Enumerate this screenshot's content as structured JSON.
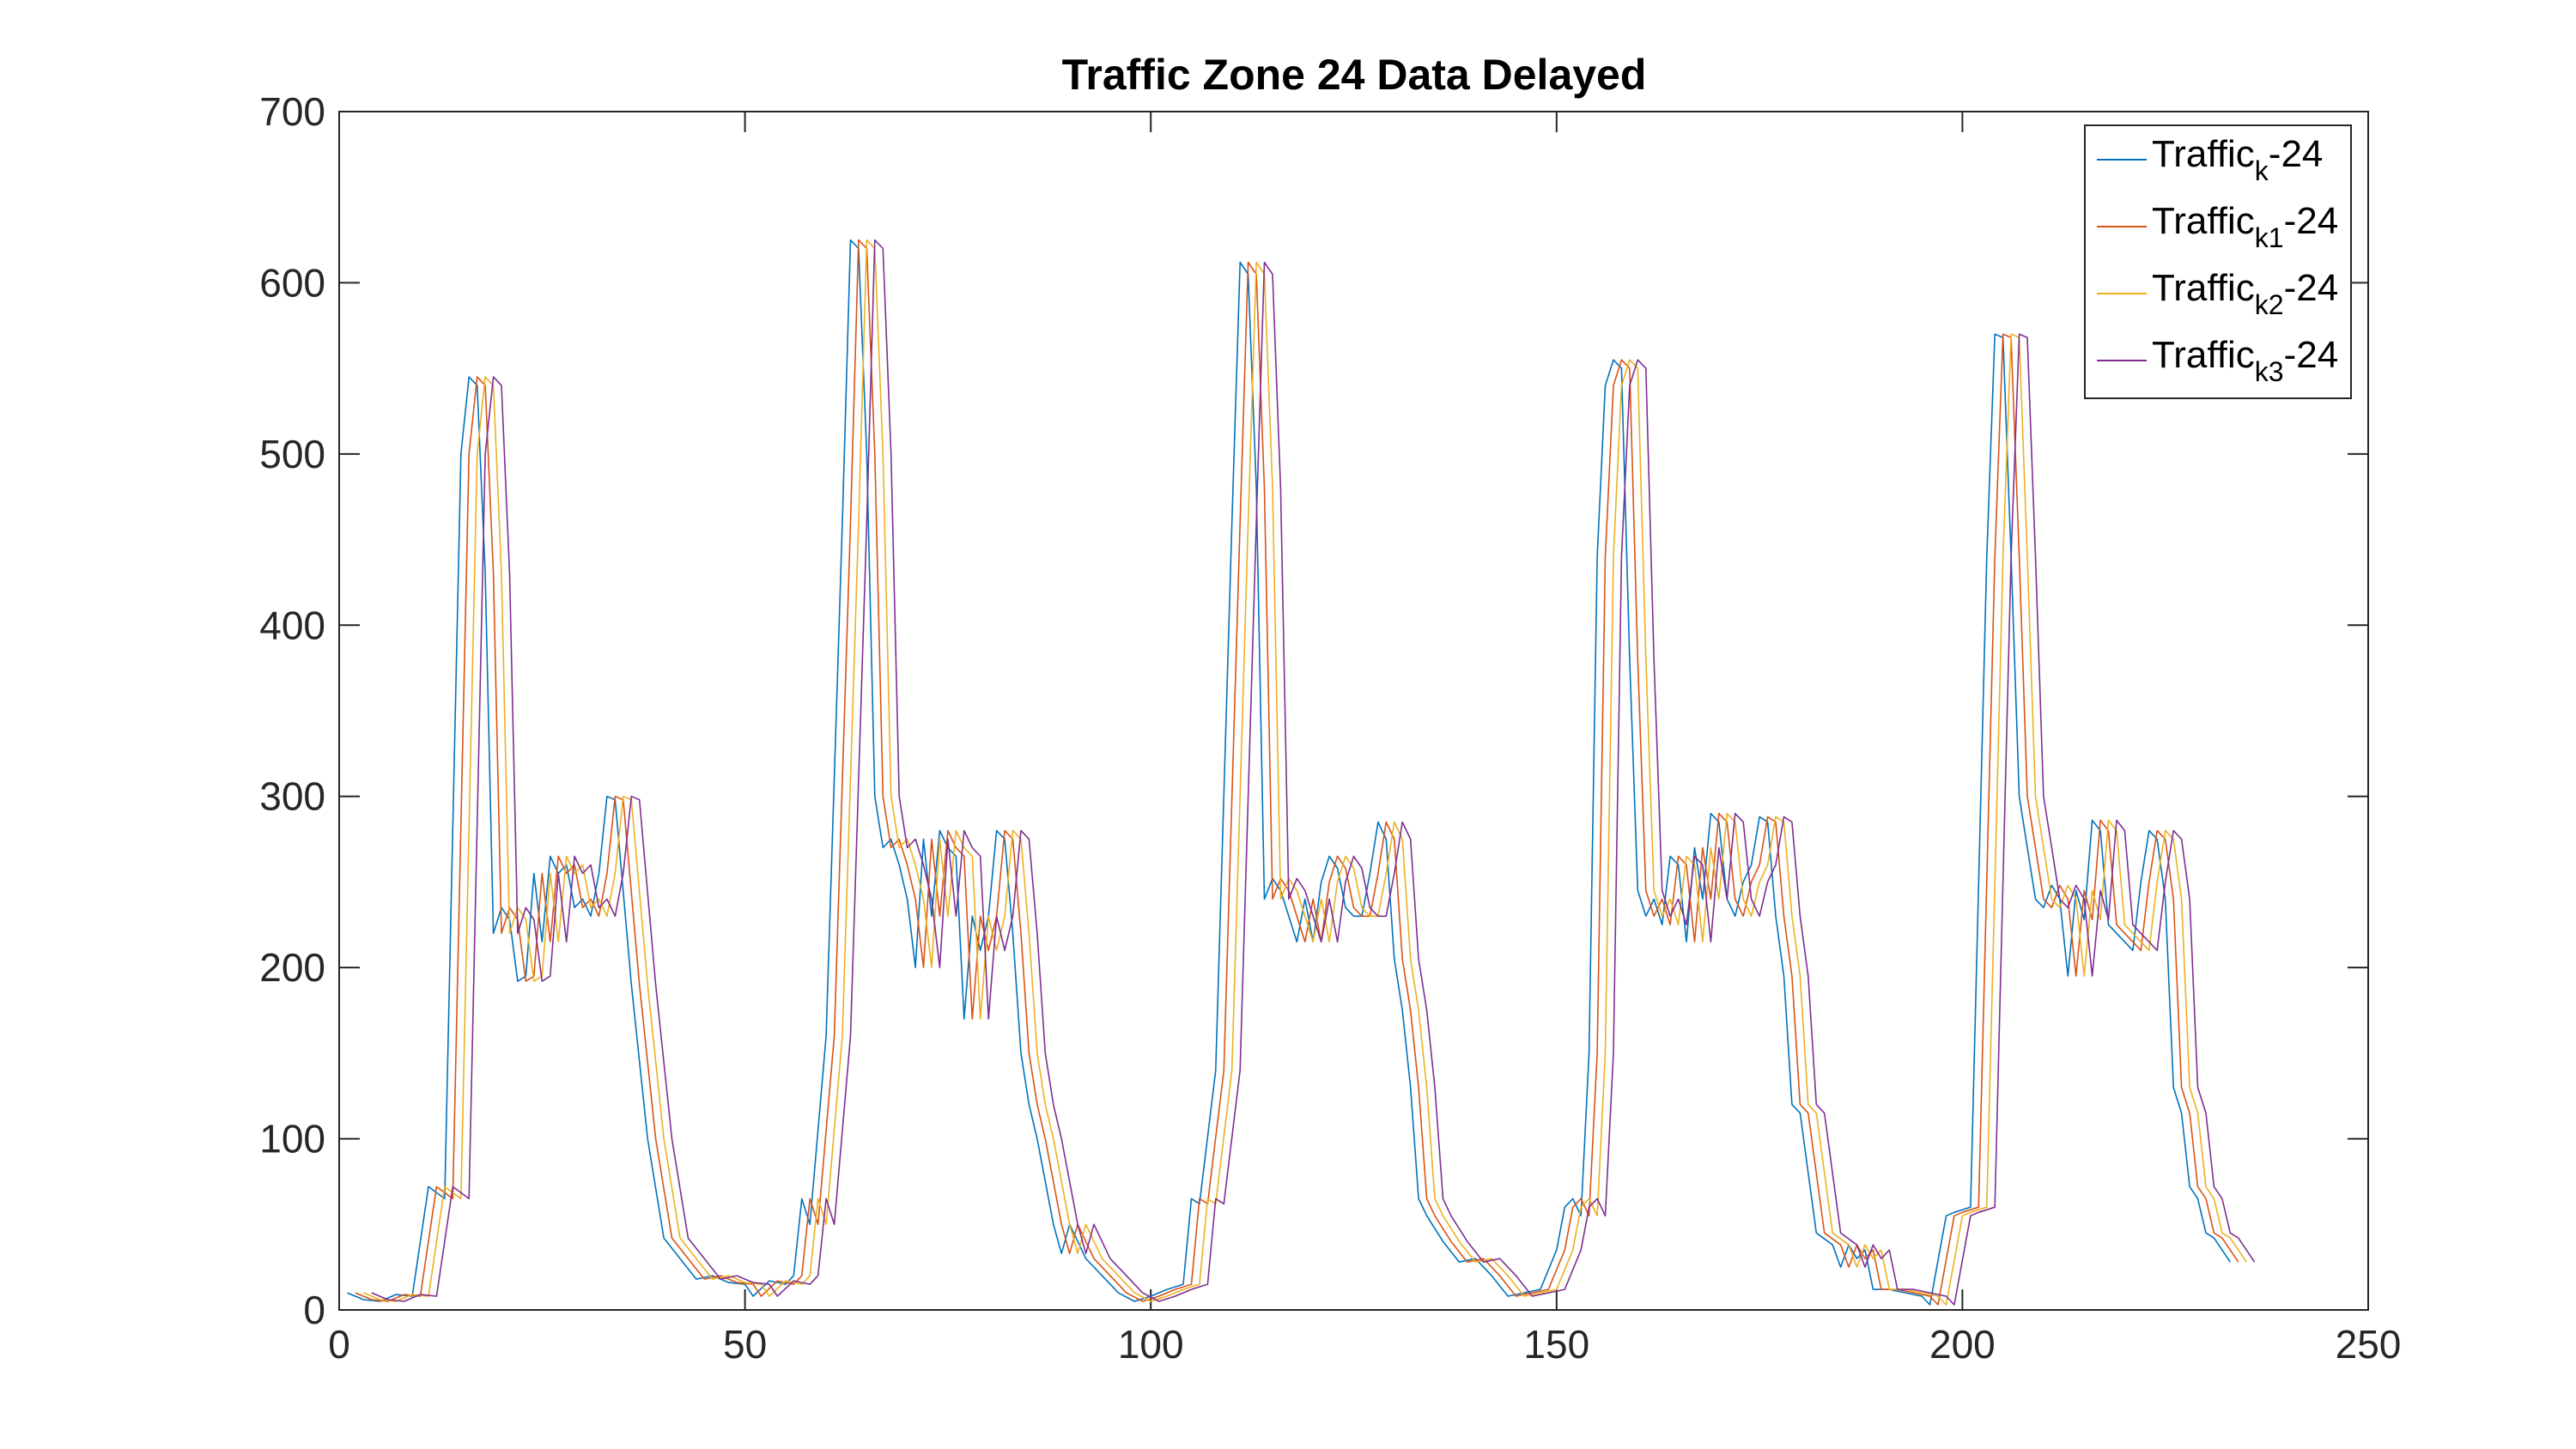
{
  "chart_data": {
    "type": "line",
    "title": "Traffic Zone 24 Data Delayed",
    "xlabel": "",
    "ylabel": "",
    "xlim": [
      0,
      250
    ],
    "ylim": [
      0,
      700
    ],
    "xticks": [
      "0",
      "50",
      "100",
      "150",
      "200",
      "250"
    ],
    "yticks": [
      "0",
      "100",
      "200",
      "300",
      "400",
      "500",
      "600",
      "700"
    ],
    "grid": false,
    "legend_position": "top-right",
    "base_profile": [
      [
        1,
        10
      ],
      [
        3,
        6
      ],
      [
        5,
        5
      ],
      [
        7,
        9
      ],
      [
        9,
        8
      ],
      [
        11,
        72
      ],
      [
        13,
        65
      ],
      [
        15,
        500
      ],
      [
        16,
        545
      ],
      [
        17,
        540
      ],
      [
        18,
        430
      ],
      [
        19,
        220
      ],
      [
        20,
        235
      ],
      [
        21,
        228
      ],
      [
        22,
        192
      ],
      [
        23,
        195
      ],
      [
        24,
        255
      ],
      [
        25,
        215
      ],
      [
        26,
        265
      ],
      [
        27,
        255
      ],
      [
        28,
        260
      ],
      [
        29,
        235
      ],
      [
        30,
        240
      ],
      [
        31,
        230
      ],
      [
        32,
        255
      ],
      [
        33,
        300
      ],
      [
        34,
        298
      ],
      [
        36,
        190
      ],
      [
        38,
        100
      ],
      [
        40,
        42
      ],
      [
        42,
        30
      ],
      [
        44,
        18
      ],
      [
        46,
        20
      ],
      [
        48,
        16
      ],
      [
        50,
        15
      ],
      [
        51,
        8
      ],
      [
        53,
        17
      ],
      [
        55,
        15
      ],
      [
        56,
        20
      ],
      [
        57,
        65
      ],
      [
        58,
        50
      ],
      [
        60,
        160
      ],
      [
        62,
        460
      ],
      [
        63,
        625
      ],
      [
        64,
        620
      ],
      [
        65,
        500
      ],
      [
        66,
        300
      ],
      [
        67,
        270
      ],
      [
        68,
        275
      ],
      [
        69,
        260
      ],
      [
        70,
        240
      ],
      [
        71,
        200
      ],
      [
        72,
        275
      ],
      [
        73,
        230
      ],
      [
        74,
        280
      ],
      [
        75,
        270
      ],
      [
        76,
        265
      ],
      [
        77,
        170
      ],
      [
        78,
        230
      ],
      [
        79,
        210
      ],
      [
        80,
        230
      ],
      [
        81,
        280
      ],
      [
        82,
        275
      ],
      [
        83,
        220
      ],
      [
        84,
        150
      ],
      [
        85,
        120
      ],
      [
        86,
        100
      ],
      [
        88,
        50
      ],
      [
        89,
        33
      ],
      [
        90,
        50
      ],
      [
        92,
        30
      ],
      [
        94,
        20
      ],
      [
        96,
        10
      ],
      [
        98,
        5
      ],
      [
        100,
        8
      ],
      [
        102,
        12
      ],
      [
        104,
        15
      ],
      [
        105,
        65
      ],
      [
        106,
        62
      ],
      [
        108,
        140
      ],
      [
        110,
        460
      ],
      [
        111,
        612
      ],
      [
        112,
        605
      ],
      [
        113,
        480
      ],
      [
        114,
        240
      ],
      [
        115,
        252
      ],
      [
        116,
        245
      ],
      [
        117,
        230
      ],
      [
        118,
        215
      ],
      [
        119,
        240
      ],
      [
        120,
        215
      ],
      [
        121,
        250
      ],
      [
        122,
        265
      ],
      [
        123,
        258
      ],
      [
        124,
        235
      ],
      [
        125,
        230
      ],
      [
        126,
        230
      ],
      [
        127,
        255
      ],
      [
        128,
        285
      ],
      [
        129,
        275
      ],
      [
        130,
        205
      ],
      [
        131,
        175
      ],
      [
        132,
        130
      ],
      [
        133,
        65
      ],
      [
        134,
        55
      ],
      [
        136,
        40
      ],
      [
        138,
        28
      ],
      [
        140,
        30
      ],
      [
        142,
        20
      ],
      [
        144,
        8
      ],
      [
        146,
        10
      ],
      [
        148,
        12
      ],
      [
        150,
        35
      ],
      [
        151,
        60
      ],
      [
        152,
        65
      ],
      [
        153,
        55
      ],
      [
        154,
        150
      ],
      [
        155,
        440
      ],
      [
        156,
        540
      ],
      [
        157,
        555
      ],
      [
        158,
        550
      ],
      [
        159,
        380
      ],
      [
        160,
        245
      ],
      [
        161,
        230
      ],
      [
        162,
        240
      ],
      [
        163,
        225
      ],
      [
        164,
        265
      ],
      [
        165,
        260
      ],
      [
        166,
        215
      ],
      [
        167,
        270
      ],
      [
        168,
        240
      ],
      [
        169,
        290
      ],
      [
        170,
        285
      ],
      [
        171,
        240
      ],
      [
        172,
        230
      ],
      [
        173,
        250
      ],
      [
        174,
        260
      ],
      [
        175,
        288
      ],
      [
        176,
        285
      ],
      [
        177,
        230
      ],
      [
        178,
        195
      ],
      [
        179,
        120
      ],
      [
        180,
        115
      ],
      [
        182,
        45
      ],
      [
        184,
        38
      ],
      [
        185,
        25
      ],
      [
        186,
        38
      ],
      [
        187,
        30
      ],
      [
        188,
        35
      ],
      [
        189,
        12
      ],
      [
        191,
        12
      ],
      [
        193,
        10
      ],
      [
        195,
        8
      ],
      [
        196,
        3
      ],
      [
        198,
        55
      ],
      [
        199,
        57
      ],
      [
        201,
        60
      ],
      [
        203,
        440
      ],
      [
        204,
        570
      ],
      [
        205,
        568
      ],
      [
        206,
        440
      ],
      [
        207,
        300
      ],
      [
        208,
        270
      ],
      [
        209,
        240
      ],
      [
        210,
        235
      ],
      [
        211,
        248
      ],
      [
        212,
        240
      ],
      [
        213,
        195
      ],
      [
        214,
        245
      ],
      [
        215,
        228
      ],
      [
        216,
        286
      ],
      [
        217,
        280
      ],
      [
        218,
        225
      ],
      [
        219,
        220
      ],
      [
        220,
        215
      ],
      [
        221,
        210
      ],
      [
        222,
        250
      ],
      [
        223,
        280
      ],
      [
        224,
        275
      ],
      [
        225,
        240
      ],
      [
        226,
        130
      ],
      [
        227,
        115
      ],
      [
        228,
        72
      ],
      [
        229,
        65
      ],
      [
        230,
        45
      ],
      [
        231,
        42
      ],
      [
        232,
        35
      ],
      [
        233,
        28
      ]
    ],
    "series": [
      {
        "name": "Traffic",
        "sub": "k",
        "suffix": "-24",
        "shift": 0,
        "color": "#0072BD"
      },
      {
        "name": "Traffic",
        "sub": "k1",
        "suffix": "-24",
        "shift": 1,
        "color": "#D95319"
      },
      {
        "name": "Traffic",
        "sub": "k2",
        "suffix": "-24",
        "shift": 2,
        "color": "#EDB120"
      },
      {
        "name": "Traffic",
        "sub": "k3",
        "suffix": "-24",
        "shift": 3,
        "color": "#7E2F8E"
      }
    ],
    "colors": {
      "axis": "#262626",
      "background": "#ffffff"
    }
  }
}
